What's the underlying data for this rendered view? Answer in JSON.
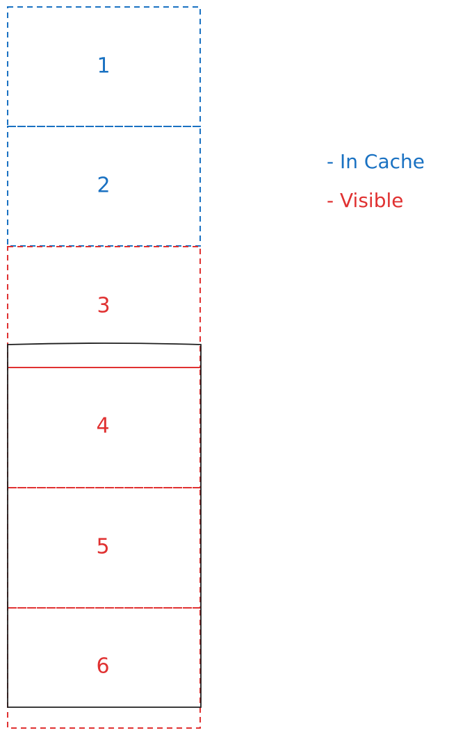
{
  "colors": {
    "cache": "#1971c2",
    "visible": "#e03131",
    "viewport": "#1e1e1e"
  },
  "cells": [
    {
      "label": "1",
      "state": "cache"
    },
    {
      "label": "2",
      "state": "cache"
    },
    {
      "label": "3",
      "state": "visible"
    },
    {
      "label": "4",
      "state": "visible"
    },
    {
      "label": "5",
      "state": "visible"
    },
    {
      "label": "6",
      "state": "visible"
    }
  ],
  "legend": {
    "cache_label": "- In Cache",
    "visible_label": "- Visible"
  }
}
